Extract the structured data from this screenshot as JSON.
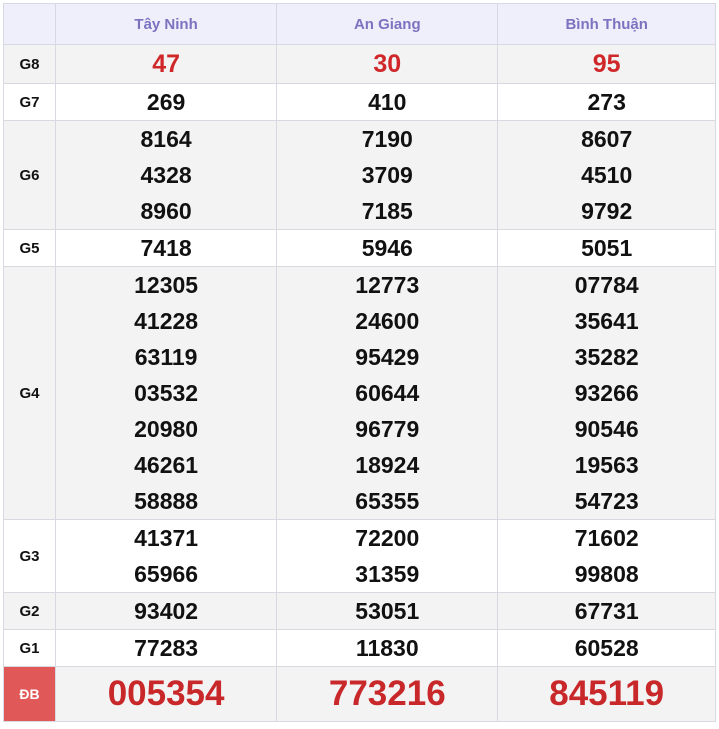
{
  "header": {
    "provinces": [
      "Tây Ninh",
      "An Giang",
      "Bình Thuận"
    ]
  },
  "colors": {
    "header_text": "#7a73c0",
    "prize_red": "#d0282a",
    "db_label_bg": "#e05858"
  },
  "rows": [
    {
      "label": "G8",
      "values": [
        [
          "47"
        ],
        [
          "30"
        ],
        [
          "95"
        ]
      ]
    },
    {
      "label": "G7",
      "values": [
        [
          "269"
        ],
        [
          "410"
        ],
        [
          "273"
        ]
      ]
    },
    {
      "label": "G6",
      "values": [
        [
          "8164",
          "4328",
          "8960"
        ],
        [
          "7190",
          "3709",
          "7185"
        ],
        [
          "8607",
          "4510",
          "9792"
        ]
      ]
    },
    {
      "label": "G5",
      "values": [
        [
          "7418"
        ],
        [
          "5946"
        ],
        [
          "5051"
        ]
      ]
    },
    {
      "label": "G4",
      "values": [
        [
          "12305",
          "41228",
          "63119",
          "03532",
          "20980",
          "46261",
          "58888"
        ],
        [
          "12773",
          "24600",
          "95429",
          "60644",
          "96779",
          "18924",
          "65355"
        ],
        [
          "07784",
          "35641",
          "35282",
          "93266",
          "90546",
          "19563",
          "54723"
        ]
      ]
    },
    {
      "label": "G3",
      "values": [
        [
          "41371",
          "65966"
        ],
        [
          "72200",
          "31359"
        ],
        [
          "71602",
          "99808"
        ]
      ]
    },
    {
      "label": "G2",
      "values": [
        [
          "93402"
        ],
        [
          "53051"
        ],
        [
          "67731"
        ]
      ]
    },
    {
      "label": "G1",
      "values": [
        [
          "77283"
        ],
        [
          "11830"
        ],
        [
          "60528"
        ]
      ]
    },
    {
      "label": "ĐB",
      "values": [
        [
          "005354"
        ],
        [
          "773216"
        ],
        [
          "845119"
        ]
      ]
    }
  ]
}
